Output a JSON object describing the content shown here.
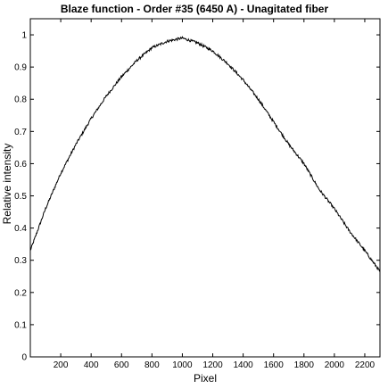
{
  "chart_data": {
    "type": "line",
    "title": "Blaze function - Order #35 (6450 A) - Unagitated fiber",
    "xlabel": "Pixel",
    "ylabel": "Relative intensity",
    "xlim": [
      0,
      2300
    ],
    "ylim": [
      0,
      1.05
    ],
    "x_ticks": [
      200,
      400,
      600,
      800,
      1000,
      1200,
      1400,
      1600,
      1800,
      2000,
      2200
    ],
    "y_ticks": [
      0,
      0.1,
      0.2,
      0.3,
      0.4,
      0.5,
      0.6,
      0.7,
      0.8,
      0.9,
      1
    ],
    "grid": false,
    "series": [
      {
        "x": [
          0,
          100,
          200,
          300,
          400,
          500,
          600,
          700,
          800,
          900,
          1000,
          1100,
          1200,
          1300,
          1400,
          1500,
          1600,
          1700,
          1800,
          1900,
          2000,
          2100,
          2200,
          2300
        ],
        "y": [
          0.33,
          0.46,
          0.57,
          0.66,
          0.74,
          0.81,
          0.87,
          0.92,
          0.96,
          0.98,
          0.99,
          0.975,
          0.95,
          0.91,
          0.86,
          0.8,
          0.73,
          0.66,
          0.6,
          0.52,
          0.46,
          0.39,
          0.33,
          0.265
        ]
      }
    ]
  }
}
